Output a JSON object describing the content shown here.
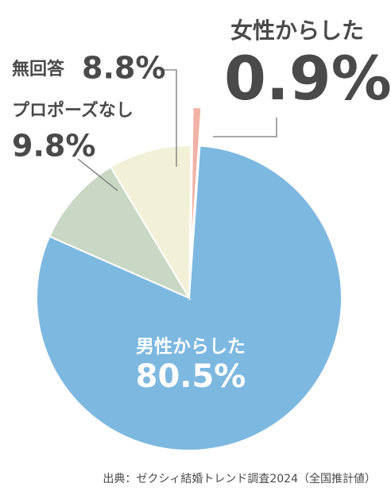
{
  "chart_data": {
    "type": "pie",
    "categories": [
      "男性からした",
      "プロポーズなし",
      "無回答",
      "女性からした"
    ],
    "values": [
      80.5,
      9.8,
      8.8,
      0.9
    ],
    "value_labels": [
      "80.5%",
      "9.8%",
      "8.8%",
      "0.9%"
    ],
    "colors": [
      "#7db8e0",
      "#c8d8c4",
      "#f2f0d6",
      "#f1b3a7"
    ],
    "source": "出典：ゼクシィ結婚トレンド調査2024（全国推計値）"
  }
}
